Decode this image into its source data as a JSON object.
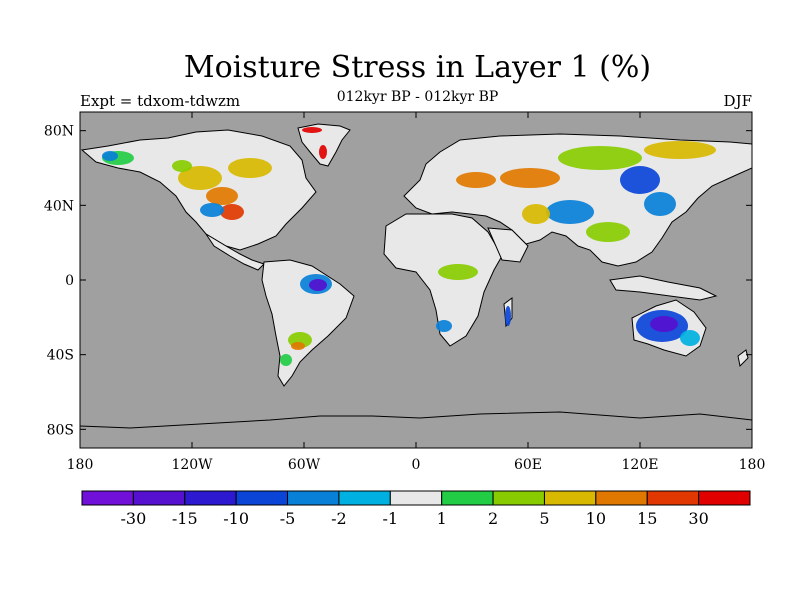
{
  "header": {
    "title": "Moisture Stress in Layer 1 (%)",
    "subtitle": "012kyr BP - 012kyr BP",
    "experiment": "Expt = tdxom-tdwzm",
    "season": "DJF"
  },
  "map": {
    "projection": "equirectangular",
    "lon_range": [
      -180,
      180
    ],
    "lat_range": [
      -90,
      90
    ],
    "background_color": "#a0a0a0",
    "lat_ticks": [
      {
        "value": 80,
        "label": "80N"
      },
      {
        "value": 40,
        "label": "40N"
      },
      {
        "value": 0,
        "label": "0"
      },
      {
        "value": -40,
        "label": "40S"
      },
      {
        "value": -80,
        "label": "80S"
      }
    ],
    "lon_ticks": [
      {
        "value": -180,
        "label": "180"
      },
      {
        "value": -120,
        "label": "120W"
      },
      {
        "value": -60,
        "label": "60W"
      },
      {
        "value": 0,
        "label": "0"
      },
      {
        "value": 60,
        "label": "60E"
      },
      {
        "value": 120,
        "label": "120E"
      },
      {
        "value": 180,
        "label": "180"
      }
    ]
  },
  "legend": {
    "colors": [
      "#7010d8",
      "#5510d0",
      "#2d1ad0",
      "#0a45d8",
      "#0880d8",
      "#00b0e0",
      "#e8e8e8",
      "#22cc44",
      "#88cc00",
      "#d8b800",
      "#e07800",
      "#e03800",
      "#e00000"
    ],
    "labels": [
      "-30",
      "-15",
      "-10",
      "-5",
      "-2",
      "-1",
      "1",
      "2",
      "5",
      "10",
      "15",
      "30"
    ]
  }
}
